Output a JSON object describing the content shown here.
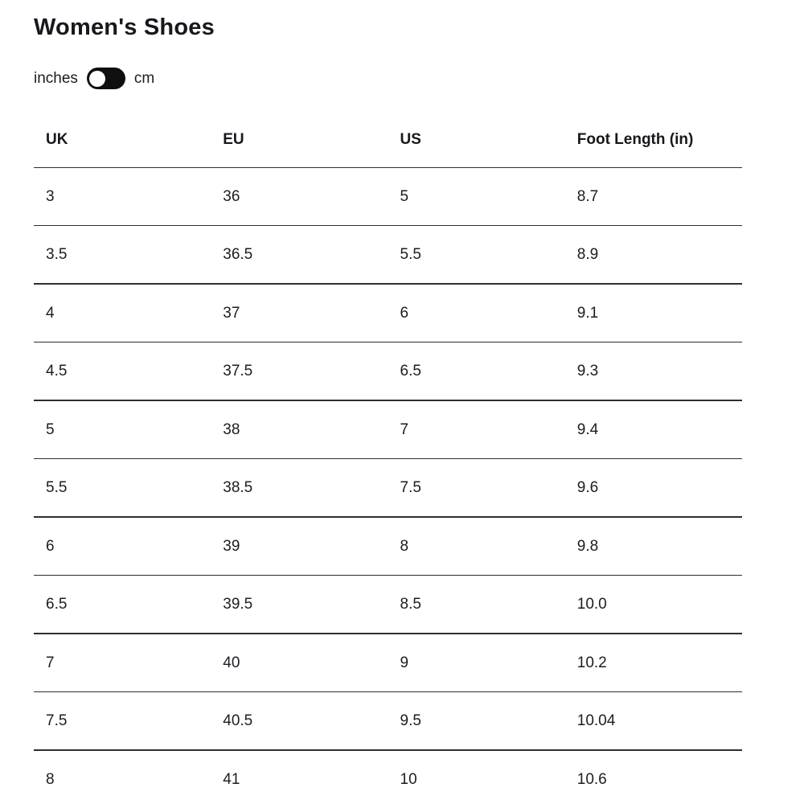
{
  "page": {
    "title": "Women's Shoes"
  },
  "unit_toggle": {
    "left_label": "inches",
    "right_label": "cm",
    "selected": "inches",
    "knob_position": "left"
  },
  "table": {
    "columns": [
      "UK",
      "EU",
      "US",
      "Foot Length (in)"
    ],
    "rows": [
      [
        "3",
        "36",
        "5",
        "8.7"
      ],
      [
        "3.5",
        "36.5",
        "5.5",
        "8.9"
      ],
      [
        "4",
        "37",
        "6",
        "9.1"
      ],
      [
        "4.5",
        "37.5",
        "6.5",
        "9.3"
      ],
      [
        "5",
        "38",
        "7",
        "9.4"
      ],
      [
        "5.5",
        "38.5",
        "7.5",
        "9.6"
      ],
      [
        "6",
        "39",
        "8",
        "9.8"
      ],
      [
        "6.5",
        "39.5",
        "8.5",
        "10.0"
      ],
      [
        "7",
        "40",
        "9",
        "10.2"
      ],
      [
        "7.5",
        "40.5",
        "9.5",
        "10.04"
      ],
      [
        "8",
        "41",
        "10",
        "10.6"
      ]
    ]
  },
  "colors": {
    "text": "#1a1d21",
    "title": "#16181c",
    "divider": "#2e2e2e",
    "toggle_track": "#0f0f0f",
    "toggle_knob": "#ffffff",
    "background": "#ffffff"
  }
}
